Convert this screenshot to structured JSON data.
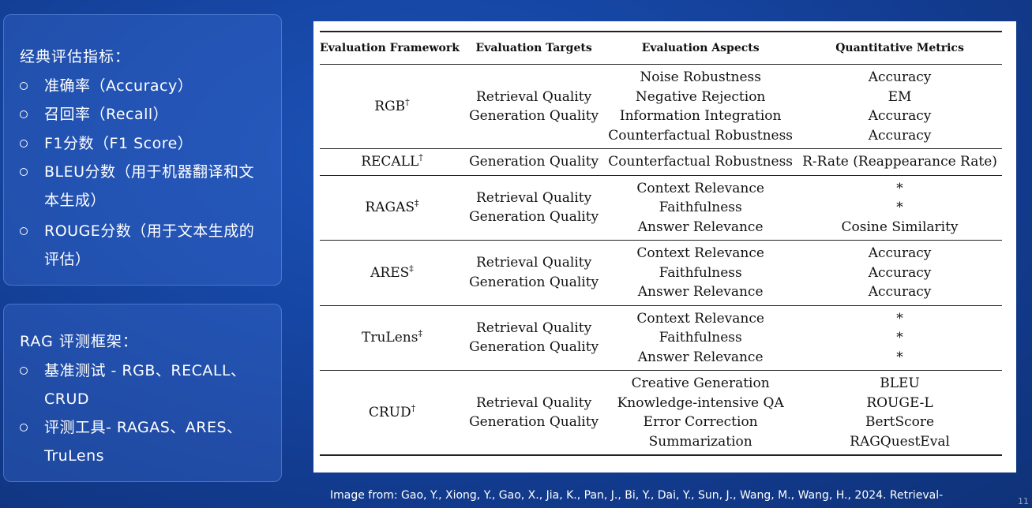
{
  "left_panel": {
    "card1": {
      "title": "经典评估指标：",
      "items": [
        "准确率（Accuracy）",
        "召回率（Recall）",
        "F1分数（F1 Score）",
        "BLEU分数（用于机器翻译和文本生成）",
        "ROUGE分数（用于文本生成的评估）"
      ]
    },
    "card2": {
      "title": "RAG 评测框架：",
      "items": [
        "基准测试 - RGB、RECALL、CRUD",
        "评测工具- RAGAS、ARES、TruLens"
      ]
    }
  },
  "table": {
    "headers": [
      "Evaluation Framework",
      "Evaluation Targets",
      "Evaluation Aspects",
      "Quantitative Metrics"
    ],
    "rows": [
      {
        "framework": "RGB",
        "mark": "†",
        "targets": [
          "Retrieval Quality",
          "Generation Quality"
        ],
        "aspects": [
          "Noise Robustness",
          "Negative Rejection",
          "Information Integration",
          "Counterfactual Robustness"
        ],
        "metrics": [
          "Accuracy",
          "EM",
          "Accuracy",
          "Accuracy"
        ]
      },
      {
        "framework": "RECALL",
        "mark": "†",
        "targets": [
          "Generation Quality"
        ],
        "aspects": [
          "Counterfactual Robustness"
        ],
        "metrics": [
          "R-Rate (Reappearance Rate)"
        ]
      },
      {
        "framework": "RAGAS",
        "mark": "‡",
        "targets": [
          "Retrieval Quality",
          "Generation Quality"
        ],
        "aspects": [
          "Context Relevance",
          "Faithfulness",
          "Answer Relevance"
        ],
        "metrics": [
          "*",
          "*",
          "Cosine Similarity"
        ]
      },
      {
        "framework": "ARES",
        "mark": "‡",
        "targets": [
          "Retrieval Quality",
          "Generation Quality"
        ],
        "aspects": [
          "Context Relevance",
          "Faithfulness",
          "Answer Relevance"
        ],
        "metrics": [
          "Accuracy",
          "Accuracy",
          "Accuracy"
        ]
      },
      {
        "framework": "TruLens",
        "mark": "‡",
        "targets": [
          "Retrieval Quality",
          "Generation Quality"
        ],
        "aspects": [
          "Context Relevance",
          "Faithfulness",
          "Answer Relevance"
        ],
        "metrics": [
          "*",
          "*",
          "*"
        ]
      },
      {
        "framework": "CRUD",
        "mark": "†",
        "targets": [
          "Retrieval Quality",
          "Generation Quality"
        ],
        "aspects": [
          "Creative Generation",
          "Knowledge-intensive QA",
          "Error Correction",
          "Summarization"
        ],
        "metrics": [
          "BLEU",
          "ROUGE-L",
          "BertScore",
          "RAGQuestEval"
        ]
      }
    ]
  },
  "caption": "Image from: Gao, Y., Xiong, Y., Gao, X., Jia, K., Pan, J., Bi, Y., Dai, Y., Sun, J., Wang, M., Wang, H., 2024. Retrieval-",
  "page_number": "11"
}
